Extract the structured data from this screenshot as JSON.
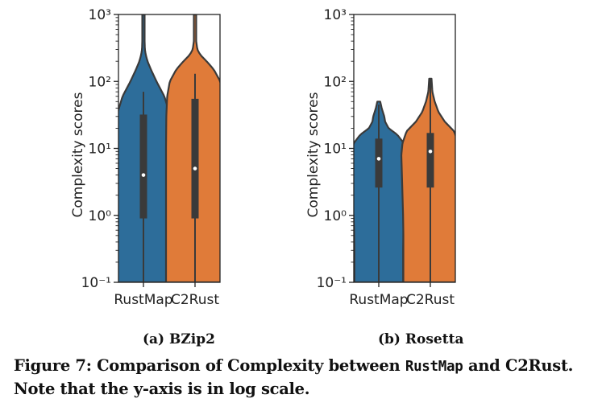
{
  "chart_data": [
    {
      "type": "violin",
      "panel_label": "(a) BZip2",
      "ylabel": "Complexity scores",
      "yscale": "log",
      "ylim": [
        0.1,
        1000
      ],
      "yticks": [
        0.1,
        1,
        10,
        100,
        1000
      ],
      "categories": [
        "RustMap",
        "C2Rust"
      ],
      "colors": [
        "#2d6d9a",
        "#e07b39"
      ],
      "series": [
        {
          "box": {
            "q1": 0.9,
            "median": 4,
            "q3": 32
          },
          "whisker": {
            "low": 0.1,
            "high": 70
          },
          "max": 1000,
          "density": [
            [
              0.1,
              1
            ],
            [
              0.3,
              1
            ],
            [
              1,
              1
            ],
            [
              3,
              1
            ],
            [
              10,
              0.99
            ],
            [
              30,
              0.93
            ],
            [
              60,
              0.72
            ],
            [
              100,
              0.45
            ],
            [
              150,
              0.26
            ],
            [
              200,
              0.14
            ],
            [
              250,
              0.08
            ],
            [
              300,
              0.05
            ],
            [
              400,
              0.04
            ],
            [
              1000,
              0.04
            ]
          ]
        },
        {
          "box": {
            "q1": 0.9,
            "median": 5,
            "q3": 55
          },
          "whisker": {
            "low": 0.1,
            "high": 130
          },
          "max": 1000,
          "density": [
            [
              0.1,
              1
            ],
            [
              1,
              1
            ],
            [
              10,
              1
            ],
            [
              30,
              0.99
            ],
            [
              60,
              0.96
            ],
            [
              100,
              0.87
            ],
            [
              150,
              0.65
            ],
            [
              200,
              0.4
            ],
            [
              250,
              0.18
            ],
            [
              300,
              0.08
            ],
            [
              400,
              0.04
            ],
            [
              1000,
              0.04
            ]
          ]
        }
      ]
    },
    {
      "type": "violin",
      "panel_label": "(b) Rosetta",
      "ylabel": "Complexity scores",
      "yscale": "log",
      "ylim": [
        0.1,
        1000
      ],
      "yticks": [
        0.1,
        1,
        10,
        100,
        1000
      ],
      "categories": [
        "RustMap",
        "C2Rust"
      ],
      "colors": [
        "#2d6d9a",
        "#e07b39"
      ],
      "series": [
        {
          "box": {
            "q1": 2.6,
            "median": 7,
            "q3": 14
          },
          "whisker": {
            "low": 0.1,
            "high": 45
          },
          "max": 50,
          "density": [
            [
              0.1,
              0.84
            ],
            [
              0.3,
              0.84
            ],
            [
              0.6,
              0.85
            ],
            [
              1,
              0.87
            ],
            [
              2,
              0.95
            ],
            [
              4,
              1
            ],
            [
              8,
              0.97
            ],
            [
              12,
              0.86
            ],
            [
              16,
              0.64
            ],
            [
              20,
              0.34
            ],
            [
              25,
              0.22
            ],
            [
              30,
              0.19
            ],
            [
              40,
              0.1
            ],
            [
              50,
              0.05
            ]
          ]
        },
        {
          "box": {
            "q1": 2.6,
            "median": 9,
            "q3": 17
          },
          "whisker": {
            "low": 0.1,
            "high": 110
          },
          "max": 110,
          "density": [
            [
              0.1,
              0.93
            ],
            [
              0.5,
              0.93
            ],
            [
              1,
              0.94
            ],
            [
              2,
              0.96
            ],
            [
              4,
              0.98
            ],
            [
              8,
              1
            ],
            [
              12,
              0.96
            ],
            [
              18,
              0.82
            ],
            [
              25,
              0.5
            ],
            [
              35,
              0.28
            ],
            [
              50,
              0.15
            ],
            [
              70,
              0.07
            ],
            [
              110,
              0.04
            ]
          ]
        }
      ]
    }
  ],
  "captions": {
    "sub_a": "(a) BZip2",
    "sub_b": "(b) Rosetta",
    "main_prefix": "Figure 7: Comparison of Complexity between ",
    "main_code": "RustMap",
    "main_middle": " and C2Rust.",
    "main_line2": "Note that the y-axis is in log scale."
  }
}
